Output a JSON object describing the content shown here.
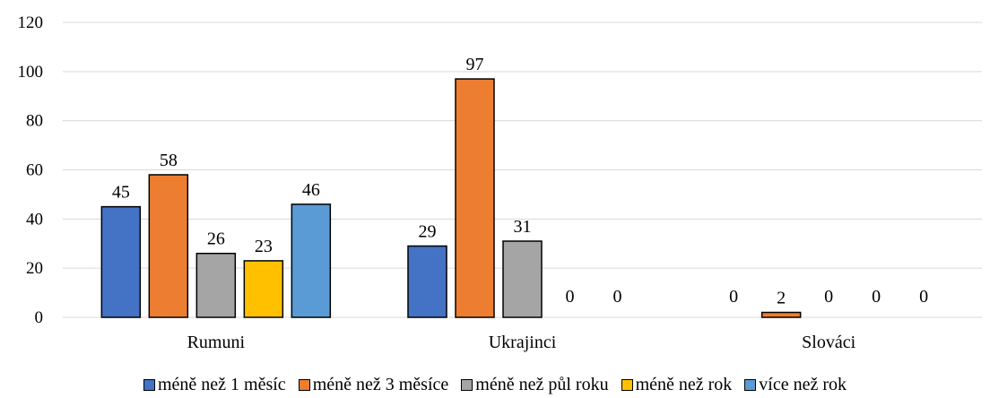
{
  "chart_data": {
    "type": "bar",
    "categories": [
      "Rumuni",
      "Ukrajinci",
      "Slováci"
    ],
    "ylim": [
      0,
      120
    ],
    "yticks": [
      0,
      20,
      40,
      60,
      80,
      100,
      120
    ],
    "grid": true,
    "legend_position": "bottom",
    "series": [
      {
        "name": "méně než 1 měsíc",
        "color": "#4472C4",
        "values": [
          45,
          29,
          0
        ]
      },
      {
        "name": "méně než 3 měsíce",
        "color": "#ED7D31",
        "values": [
          58,
          97,
          2
        ]
      },
      {
        "name": "méně než půl roku",
        "color": "#A5A5A5",
        "values": [
          26,
          31,
          0
        ]
      },
      {
        "name": "méně než rok",
        "color": "#FFC000",
        "values": [
          23,
          0,
          0
        ]
      },
      {
        "name": "více než rok",
        "color": "#5B9BD5",
        "values": [
          46,
          0,
          0
        ]
      }
    ]
  }
}
